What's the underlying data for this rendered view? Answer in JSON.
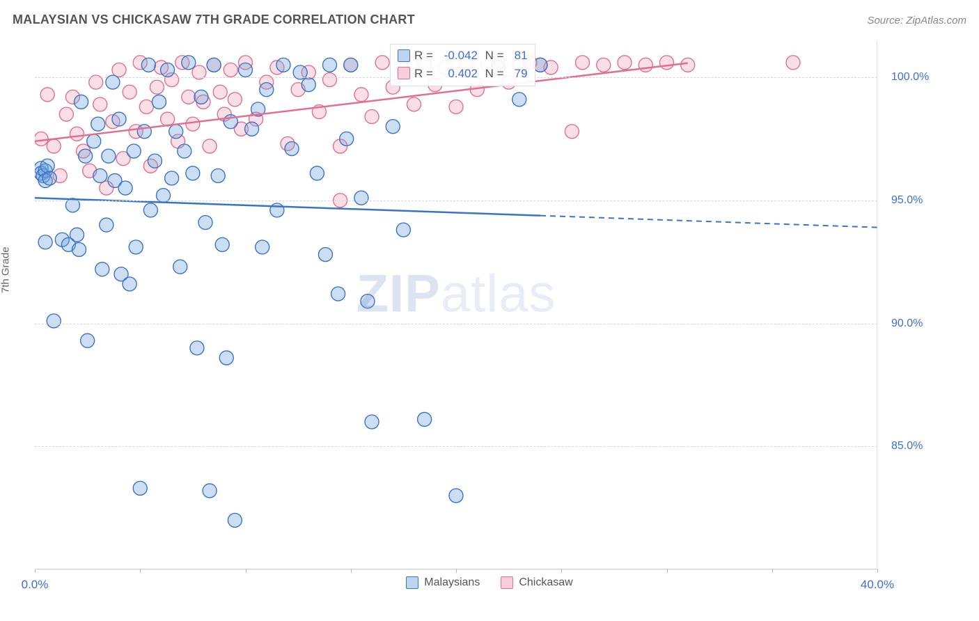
{
  "header": {
    "title": "MALAYSIAN VS CHICKASAW 7TH GRADE CORRELATION CHART",
    "source": "Source: ZipAtlas.com"
  },
  "chart": {
    "type": "scatter",
    "ylabel": "7th Grade",
    "xlim": [
      0,
      40
    ],
    "ylim": [
      80,
      101.5
    ],
    "yticks": [
      85.0,
      90.0,
      95.0,
      100.0
    ],
    "ytick_labels": [
      "85.0%",
      "90.0%",
      "95.0%",
      "100.0%"
    ],
    "xticks": [
      0,
      5,
      10,
      15,
      20,
      25,
      30,
      35,
      40
    ],
    "xtick_labels_shown": {
      "0": "0.0%",
      "40": "40.0%"
    },
    "background_color": "#ffffff",
    "grid_color": "#d5d5d5",
    "grid_dash": true,
    "marker_radius": 10,
    "marker_fill_opacity": 0.35,
    "marker_stroke_width": 1.4,
    "series": [
      {
        "name": "Malaysians",
        "color_fill": "#6ea0e0",
        "color_stroke": "#3b74c4",
        "r_value": "-0.042",
        "n_value": "81",
        "trend": {
          "x1": 0,
          "y1": 95.1,
          "x2": 24,
          "y2": 94.4,
          "x3": 40,
          "y3": 93.9,
          "dash_after_x": 24
        },
        "points": [
          [
            0.3,
            96.3
          ],
          [
            0.3,
            96.1
          ],
          [
            0.4,
            96.0
          ],
          [
            0.5,
            96.2
          ],
          [
            0.5,
            95.8
          ],
          [
            0.6,
            96.4
          ],
          [
            0.7,
            95.9
          ],
          [
            0.5,
            93.3
          ],
          [
            0.9,
            90.1
          ],
          [
            1.3,
            93.4
          ],
          [
            1.6,
            93.2
          ],
          [
            1.8,
            94.8
          ],
          [
            2.0,
            93.6
          ],
          [
            2.1,
            93.0
          ],
          [
            2.2,
            99.0
          ],
          [
            2.4,
            96.8
          ],
          [
            2.5,
            89.3
          ],
          [
            2.8,
            97.4
          ],
          [
            3.0,
            98.1
          ],
          [
            3.1,
            96.0
          ],
          [
            3.2,
            92.2
          ],
          [
            3.4,
            94.0
          ],
          [
            3.5,
            96.8
          ],
          [
            3.7,
            99.8
          ],
          [
            3.8,
            95.8
          ],
          [
            4.0,
            98.3
          ],
          [
            4.1,
            92.0
          ],
          [
            4.3,
            95.5
          ],
          [
            4.5,
            91.6
          ],
          [
            4.7,
            97.0
          ],
          [
            4.8,
            93.1
          ],
          [
            5.0,
            83.3
          ],
          [
            5.2,
            97.8
          ],
          [
            5.4,
            100.5
          ],
          [
            5.5,
            94.6
          ],
          [
            5.7,
            96.6
          ],
          [
            5.9,
            99.0
          ],
          [
            6.1,
            95.2
          ],
          [
            6.3,
            100.3
          ],
          [
            6.5,
            95.9
          ],
          [
            6.7,
            97.8
          ],
          [
            6.9,
            92.3
          ],
          [
            7.1,
            97.0
          ],
          [
            7.3,
            100.6
          ],
          [
            7.5,
            96.1
          ],
          [
            7.7,
            89.0
          ],
          [
            7.9,
            99.2
          ],
          [
            8.1,
            94.1
          ],
          [
            8.3,
            83.2
          ],
          [
            8.5,
            100.5
          ],
          [
            8.7,
            96.0
          ],
          [
            8.9,
            93.2
          ],
          [
            9.1,
            88.6
          ],
          [
            9.3,
            98.2
          ],
          [
            9.5,
            82.0
          ],
          [
            10.0,
            100.3
          ],
          [
            10.3,
            97.9
          ],
          [
            10.6,
            98.7
          ],
          [
            10.8,
            93.1
          ],
          [
            11.0,
            99.5
          ],
          [
            11.5,
            94.6
          ],
          [
            11.8,
            100.5
          ],
          [
            12.2,
            97.1
          ],
          [
            12.6,
            100.2
          ],
          [
            13.0,
            99.7
          ],
          [
            13.4,
            96.1
          ],
          [
            13.8,
            92.8
          ],
          [
            14.0,
            100.5
          ],
          [
            14.4,
            91.2
          ],
          [
            14.8,
            97.5
          ],
          [
            15.0,
            100.5
          ],
          [
            15.5,
            95.1
          ],
          [
            15.8,
            90.9
          ],
          [
            16.0,
            86.0
          ],
          [
            17.0,
            98.0
          ],
          [
            17.5,
            93.8
          ],
          [
            18.5,
            86.1
          ],
          [
            20.0,
            83.0
          ],
          [
            22.0,
            100.4
          ],
          [
            23.0,
            99.1
          ],
          [
            24.0,
            100.5
          ]
        ]
      },
      {
        "name": "Chickasaw",
        "color_fill": "#f4a3b8",
        "color_stroke": "#e0708f",
        "r_value": "0.402",
        "n_value": "79",
        "trend": {
          "x1": 0,
          "y1": 97.4,
          "x2": 31,
          "y2": 100.6,
          "x3": 40,
          "y3": 101.5,
          "dash_after_x": 999
        },
        "points": [
          [
            0.3,
            97.5
          ],
          [
            0.6,
            99.3
          ],
          [
            0.9,
            97.2
          ],
          [
            1.2,
            96.0
          ],
          [
            1.5,
            98.5
          ],
          [
            1.8,
            99.2
          ],
          [
            2.0,
            97.7
          ],
          [
            2.3,
            97.0
          ],
          [
            2.6,
            96.2
          ],
          [
            2.9,
            99.8
          ],
          [
            3.1,
            98.9
          ],
          [
            3.4,
            95.5
          ],
          [
            3.7,
            98.2
          ],
          [
            4.0,
            100.3
          ],
          [
            4.2,
            96.7
          ],
          [
            4.5,
            99.4
          ],
          [
            4.8,
            97.8
          ],
          [
            5.0,
            100.6
          ],
          [
            5.3,
            98.8
          ],
          [
            5.5,
            96.4
          ],
          [
            5.8,
            99.6
          ],
          [
            6.0,
            100.4
          ],
          [
            6.3,
            98.3
          ],
          [
            6.5,
            99.9
          ],
          [
            6.8,
            97.4
          ],
          [
            7.0,
            100.6
          ],
          [
            7.3,
            99.2
          ],
          [
            7.5,
            98.1
          ],
          [
            7.8,
            100.2
          ],
          [
            8.0,
            99.0
          ],
          [
            8.3,
            97.2
          ],
          [
            8.5,
            100.5
          ],
          [
            8.8,
            99.4
          ],
          [
            9.0,
            98.5
          ],
          [
            9.3,
            100.3
          ],
          [
            9.5,
            99.1
          ],
          [
            9.8,
            97.9
          ],
          [
            10.0,
            100.6
          ],
          [
            10.5,
            98.3
          ],
          [
            11.0,
            99.8
          ],
          [
            11.5,
            100.4
          ],
          [
            12.0,
            97.3
          ],
          [
            12.5,
            99.5
          ],
          [
            13.0,
            100.2
          ],
          [
            13.5,
            98.6
          ],
          [
            14.0,
            99.9
          ],
          [
            14.5,
            97.2
          ],
          [
            15.0,
            100.5
          ],
          [
            15.5,
            99.3
          ],
          [
            16.0,
            98.4
          ],
          [
            16.5,
            100.6
          ],
          [
            17.0,
            99.6
          ],
          [
            17.5,
            100.3
          ],
          [
            18.0,
            98.9
          ],
          [
            18.5,
            100.5
          ],
          [
            19.0,
            99.7
          ],
          [
            19.5,
            100.4
          ],
          [
            20.0,
            98.8
          ],
          [
            20.5,
            100.6
          ],
          [
            21.0,
            99.5
          ],
          [
            21.5,
            100.5
          ],
          [
            22.0,
            100.6
          ],
          [
            22.5,
            99.8
          ],
          [
            23.0,
            100.5
          ],
          [
            23.5,
            100.6
          ],
          [
            24.0,
            100.5
          ],
          [
            14.5,
            95.0
          ],
          [
            23.5,
            100.6
          ],
          [
            25.5,
            97.8
          ],
          [
            24.5,
            100.4
          ],
          [
            26.0,
            100.6
          ],
          [
            27.0,
            100.5
          ],
          [
            28.0,
            100.6
          ],
          [
            29.0,
            100.5
          ],
          [
            30.0,
            100.6
          ],
          [
            31.0,
            100.5
          ],
          [
            36.0,
            100.6
          ],
          [
            22.0,
            100.6
          ],
          [
            18.0,
            100.6
          ]
        ]
      }
    ]
  },
  "legend": {
    "items": [
      {
        "label": "Malaysians",
        "swatch_fill": "#bcd4f0",
        "swatch_stroke": "#3b74c4"
      },
      {
        "label": "Chickasaw",
        "swatch_fill": "#f9cdd9",
        "swatch_stroke": "#e0708f"
      }
    ]
  },
  "watermark": {
    "part1": "ZIP",
    "part2": "atlas"
  }
}
